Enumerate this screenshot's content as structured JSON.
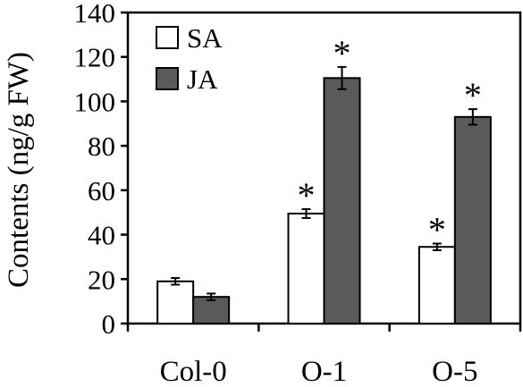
{
  "chart_data": {
    "type": "bar",
    "ylabel": "Contents (ng/g FW)",
    "xlabel": "",
    "ylim": [
      0,
      140
    ],
    "yticks": [
      0,
      20,
      40,
      60,
      80,
      100,
      120,
      140
    ],
    "categories": [
      "Col-0",
      "O-1",
      "O-5"
    ],
    "series": [
      {
        "name": "SA",
        "color": "#ffffff",
        "values": [
          19,
          49.5,
          34.5
        ],
        "errors": [
          1.5,
          2,
          1.5
        ],
        "significance": [
          "",
          "*",
          "*"
        ]
      },
      {
        "name": "JA",
        "color": "#5a5a5a",
        "values": [
          12,
          110.5,
          93
        ],
        "errors": [
          1.5,
          5,
          3.5
        ],
        "significance": [
          "",
          "*",
          "*"
        ]
      }
    ],
    "legend_position": "top-left",
    "grid": false
  }
}
